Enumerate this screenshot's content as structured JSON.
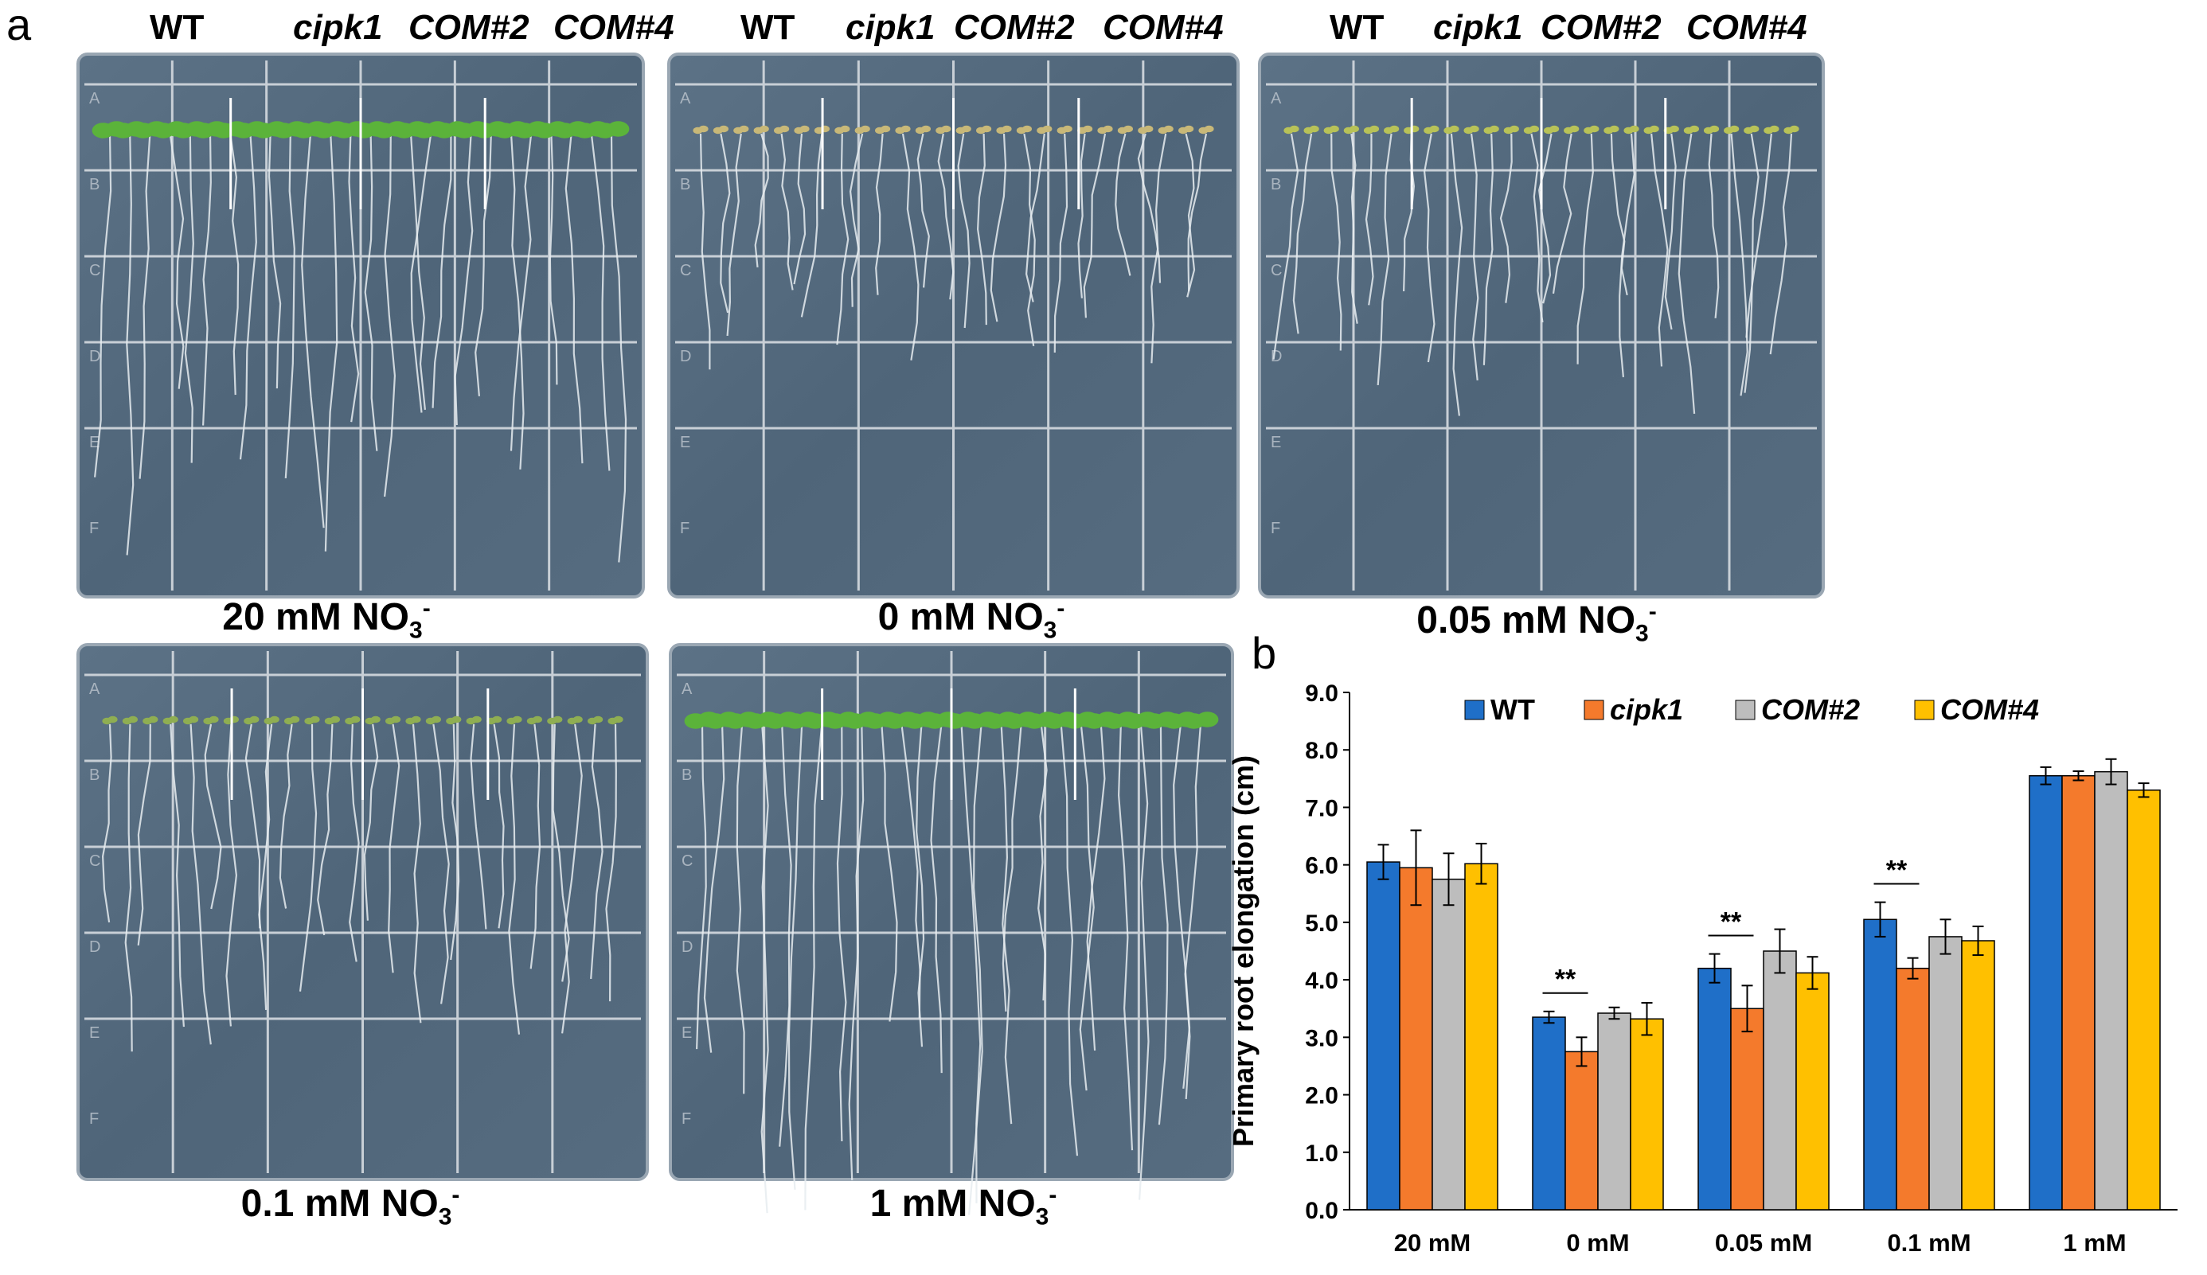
{
  "panel_a": {
    "letter": "a",
    "genotypes": [
      "WT",
      "cipk1",
      "COM#2",
      "COM#4"
    ],
    "row_letters": [
      "A",
      "B",
      "C",
      "D",
      "E",
      "F"
    ],
    "plates": [
      {
        "caption_main": "20 mM NO",
        "caption_sub": "3",
        "caption_sup": "-",
        "shoot": "large-green"
      },
      {
        "caption_main": "0 mM NO",
        "caption_sub": "3",
        "caption_sup": "-",
        "shoot": "tiny-yellow"
      },
      {
        "caption_main": "0.05 mM NO",
        "caption_sub": "3",
        "caption_sup": "-",
        "shoot": "tiny-yellowgreen"
      },
      {
        "caption_main": "0.1 mM NO",
        "caption_sub": "3",
        "caption_sup": "-",
        "shoot": "small-green"
      },
      {
        "caption_main": "1 mM NO",
        "caption_sub": "3",
        "caption_sup": "-",
        "shoot": "large-green"
      }
    ]
  },
  "panel_b": {
    "letter": "b",
    "chart_data": {
      "type": "bar",
      "title": "",
      "xlabel": "",
      "ylabel": "Primary root elongation (cm)",
      "ylim": [
        0,
        9
      ],
      "yticks": [
        "0.0",
        "1.0",
        "2.0",
        "3.0",
        "4.0",
        "5.0",
        "6.0",
        "7.0",
        "8.0",
        "9.0"
      ],
      "categories": [
        "20 mM",
        "0 mM",
        "0.05 mM",
        "0.1 mM",
        "1 mM"
      ],
      "legend_position": "top",
      "series": [
        {
          "name": "WT",
          "color": "#1f6fc8",
          "italic": false,
          "values": [
            6.05,
            3.35,
            4.2,
            5.05,
            7.55
          ],
          "errors": [
            0.3,
            0.1,
            0.25,
            0.3,
            0.15
          ]
        },
        {
          "name": "cipk1",
          "color": "#f47a2c",
          "italic": true,
          "values": [
            5.95,
            2.75,
            3.5,
            4.2,
            7.55
          ],
          "errors": [
            0.65,
            0.25,
            0.4,
            0.18,
            0.08
          ]
        },
        {
          "name": "COM#2",
          "color": "#bdbdbd",
          "italic": true,
          "values": [
            5.75,
            3.42,
            4.5,
            4.75,
            7.62
          ],
          "errors": [
            0.45,
            0.1,
            0.38,
            0.3,
            0.22
          ]
        },
        {
          "name": "COM#4",
          "color": "#ffc000",
          "italic": true,
          "values": [
            6.02,
            3.32,
            4.12,
            4.68,
            7.3
          ],
          "errors": [
            0.35,
            0.28,
            0.28,
            0.25,
            0.12
          ]
        }
      ],
      "annotations": [
        {
          "category": "0 mM",
          "text": "**"
        },
        {
          "category": "0.05 mM",
          "text": "**"
        },
        {
          "category": "0.1 mM",
          "text": "**"
        }
      ]
    }
  }
}
